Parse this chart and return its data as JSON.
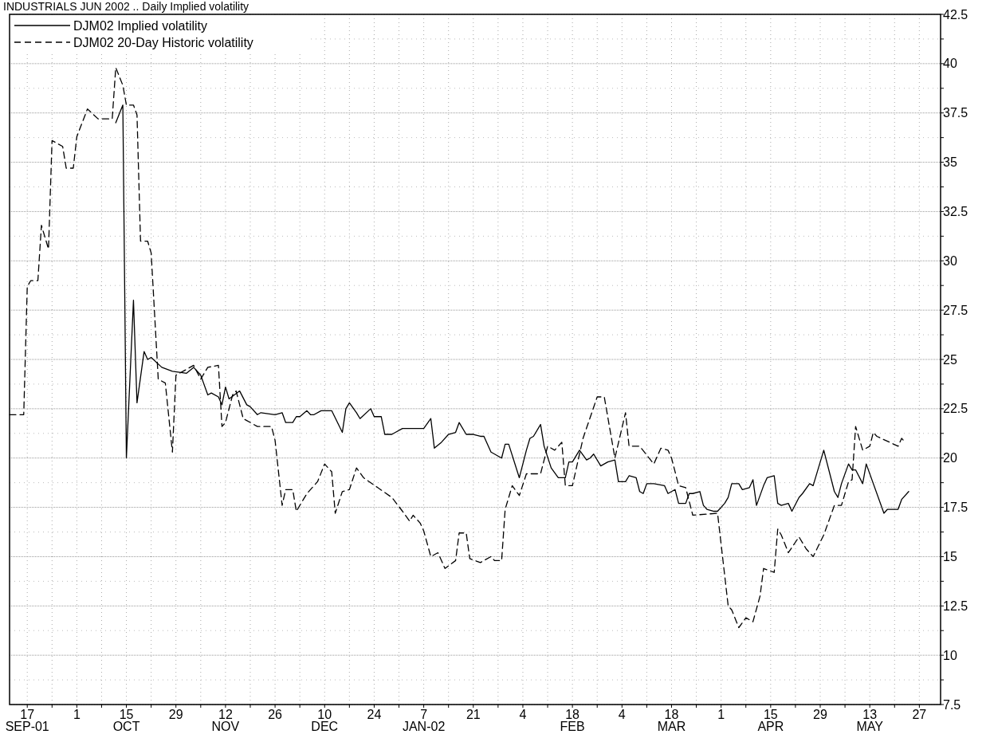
{
  "chart_data": {
    "type": "line",
    "title": "INDUSTRIALS JUN 2002 .. Daily Implied volatility",
    "xlim": [
      "2001-09-12",
      "2002-06-02"
    ],
    "ylim": [
      7.5,
      42.5
    ],
    "xticks": [
      {
        "value": "2001-09-17",
        "label": "17\nSEP-01"
      },
      {
        "value": "2001-09-24",
        "label": null
      },
      {
        "value": "2001-10-01",
        "label": "1"
      },
      {
        "value": "2001-10-08",
        "label": null
      },
      {
        "value": "2001-10-15",
        "label": "15\nOCT"
      },
      {
        "value": "2001-10-22",
        "label": null
      },
      {
        "value": "2001-10-29",
        "label": "29"
      },
      {
        "value": "2001-11-05",
        "label": null
      },
      {
        "value": "2001-11-12",
        "label": "12\nNOV"
      },
      {
        "value": "2001-11-19",
        "label": null
      },
      {
        "value": "2001-11-26",
        "label": "26"
      },
      {
        "value": "2001-12-03",
        "label": null
      },
      {
        "value": "2001-12-10",
        "label": "10\nDEC"
      },
      {
        "value": "2001-12-17",
        "label": null
      },
      {
        "value": "2001-12-24",
        "label": "24"
      },
      {
        "value": "2001-12-31",
        "label": null
      },
      {
        "value": "2002-01-07",
        "label": "7\nJAN-02"
      },
      {
        "value": "2002-01-14",
        "label": null
      },
      {
        "value": "2002-01-21",
        "label": "21"
      },
      {
        "value": "2002-01-28",
        "label": null
      },
      {
        "value": "2002-02-04",
        "label": "4"
      },
      {
        "value": "2002-02-11",
        "label": null
      },
      {
        "value": "2002-02-18",
        "label": "18\nFEB"
      },
      {
        "value": "2002-02-25",
        "label": null
      },
      {
        "value": "2002-03-04",
        "label": "4"
      },
      {
        "value": "2002-03-11",
        "label": null
      },
      {
        "value": "2002-03-18",
        "label": "18\nMAR"
      },
      {
        "value": "2002-03-25",
        "label": null
      },
      {
        "value": "2002-04-01",
        "label": "1"
      },
      {
        "value": "2002-04-08",
        "label": null
      },
      {
        "value": "2002-04-15",
        "label": "15\nAPR"
      },
      {
        "value": "2002-04-22",
        "label": null
      },
      {
        "value": "2002-04-29",
        "label": "29"
      },
      {
        "value": "2002-05-06",
        "label": null
      },
      {
        "value": "2002-05-13",
        "label": "13\nMAY"
      },
      {
        "value": "2002-05-20",
        "label": null
      },
      {
        "value": "2002-05-27",
        "label": "27"
      }
    ],
    "yticks": [
      7.5,
      {
        "value": 8.75,
        "label": null
      },
      10,
      {
        "value": 11.25,
        "label": null
      },
      12.5,
      {
        "value": 13.75,
        "label": null
      },
      15,
      {
        "value": 16.25,
        "label": null
      },
      17.5,
      {
        "value": 18.75,
        "label": null
      },
      20,
      {
        "value": 21.25,
        "label": null
      },
      22.5,
      {
        "value": 23.75,
        "label": null
      },
      25,
      {
        "value": 26.25,
        "label": null
      },
      27.5,
      {
        "value": 28.75,
        "label": null
      },
      30,
      {
        "value": 31.25,
        "label": null
      },
      32.5,
      {
        "value": 33.75,
        "label": null
      },
      35,
      {
        "value": 36.25,
        "label": null
      },
      37.5,
      {
        "value": 38.75,
        "label": null
      },
      40,
      {
        "value": 41.25,
        "label": null
      },
      42.5
    ],
    "grid": true,
    "legend": "top left",
    "marker": "none",
    "series": [
      {
        "name": "DJM02 Implied volatility",
        "color": "#000000",
        "line_style": "solid",
        "x": [
          "2001-10-12",
          "2001-10-14",
          "2001-10-15",
          "2001-10-17",
          "2001-10-18",
          "2001-10-20",
          "2001-10-21",
          "2001-10-22",
          "2001-10-25",
          "2001-10-28",
          "2001-11-01",
          "2001-11-03",
          "2001-11-05",
          "2001-11-07",
          "2001-11-08",
          "2001-11-10",
          "2001-11-11",
          "2001-11-12",
          "2001-11-13",
          "2001-11-16",
          "2001-11-18",
          "2001-11-19",
          "2001-11-21",
          "2001-11-22",
          "2001-11-26",
          "2001-11-28",
          "2001-11-29",
          "2001-12-01",
          "2001-12-02",
          "2001-12-03",
          "2001-12-05",
          "2001-12-06",
          "2001-12-07",
          "2001-12-09",
          "2001-12-12",
          "2001-12-15",
          "2001-12-16",
          "2001-12-17",
          "2001-12-19",
          "2001-12-20",
          "2001-12-23",
          "2001-12-24",
          "2001-12-26",
          "2001-12-27",
          "2001-12-29",
          "2001-12-30",
          "2002-01-01",
          "2002-01-07",
          "2002-01-09",
          "2002-01-10",
          "2002-01-12",
          "2002-01-14",
          "2002-01-16",
          "2002-01-17",
          "2002-01-19",
          "2002-01-21",
          "2002-01-23",
          "2002-01-24",
          "2002-01-26",
          "2002-01-27",
          "2002-01-29",
          "2002-01-30",
          "2002-01-31",
          "2002-02-03",
          "2002-02-05",
          "2002-02-06",
          "2002-02-07",
          "2002-02-09",
          "2002-02-10",
          "2002-02-12",
          "2002-02-14",
          "2002-02-16",
          "2002-02-17",
          "2002-02-18",
          "2002-02-20",
          "2002-02-22",
          "2002-02-23",
          "2002-02-24",
          "2002-02-26",
          "2002-02-28",
          "2002-03-02",
          "2002-03-03",
          "2002-03-05",
          "2002-03-06",
          "2002-03-08",
          "2002-03-09",
          "2002-03-10",
          "2002-03-11",
          "2002-03-13",
          "2002-03-16",
          "2002-03-17",
          "2002-03-19",
          "2002-03-20",
          "2002-03-22",
          "2002-03-23",
          "2002-03-24",
          "2002-03-26",
          "2002-03-27",
          "2002-03-28",
          "2002-03-30",
          "2002-03-31",
          "2002-04-02",
          "2002-04-03",
          "2002-04-04",
          "2002-04-06",
          "2002-04-07",
          "2002-04-09",
          "2002-04-10",
          "2002-04-11",
          "2002-04-13",
          "2002-04-14",
          "2002-04-16",
          "2002-04-17",
          "2002-04-18",
          "2002-04-20",
          "2002-04-21",
          "2002-04-23",
          "2002-04-24",
          "2002-04-26",
          "2002-04-27",
          "2002-04-30",
          "2002-05-03",
          "2002-05-04",
          "2002-05-05",
          "2002-05-07",
          "2002-05-08",
          "2002-05-09",
          "2002-05-11",
          "2002-05-12",
          "2002-05-17",
          "2002-05-18",
          "2002-05-21",
          "2002-05-22",
          "2002-05-24"
        ],
        "values": [
          37.0,
          37.9,
          20.0,
          28.0,
          22.8,
          25.4,
          25.0,
          25.1,
          24.6,
          24.4,
          24.3,
          24.6,
          24.2,
          23.2,
          23.3,
          23.1,
          22.7,
          23.6,
          23.0,
          23.4,
          22.7,
          22.6,
          22.2,
          22.3,
          22.2,
          22.3,
          21.8,
          21.8,
          22.1,
          22.1,
          22.4,
          22.2,
          22.2,
          22.4,
          22.4,
          21.3,
          22.5,
          22.8,
          22.3,
          22.0,
          22.5,
          22.1,
          22.1,
          21.2,
          21.2,
          21.3,
          21.5,
          21.5,
          22.0,
          20.5,
          20.8,
          21.2,
          21.3,
          21.8,
          21.2,
          21.2,
          21.1,
          21.1,
          20.3,
          20.2,
          20.0,
          20.7,
          20.7,
          19.0,
          20.4,
          21.0,
          21.1,
          21.7,
          20.6,
          19.5,
          19.0,
          19.0,
          19.8,
          19.8,
          20.4,
          19.9,
          20.0,
          20.2,
          19.6,
          19.8,
          19.9,
          18.8,
          18.8,
          19.1,
          19.0,
          18.3,
          18.2,
          18.7,
          18.7,
          18.6,
          18.2,
          18.4,
          17.7,
          17.7,
          18.2,
          18.2,
          18.3,
          17.6,
          17.4,
          17.3,
          17.3,
          17.7,
          18.0,
          18.7,
          18.7,
          18.4,
          18.5,
          18.9,
          17.6,
          18.6,
          19.0,
          19.1,
          17.7,
          17.6,
          17.7,
          17.3,
          18.0,
          18.2,
          18.7,
          18.6,
          20.4,
          18.3,
          18.0,
          18.7,
          19.7,
          19.4,
          19.4,
          18.7,
          19.7,
          17.2,
          17.4,
          17.4,
          17.9,
          18.3
        ]
      },
      {
        "name": "DJM02 20-Day Historic volatility",
        "color": "#000000",
        "line_style": "dashed",
        "x": [
          "2001-09-12",
          "2001-09-16",
          "2001-09-17",
          "2001-09-18",
          "2001-09-20",
          "2001-09-21",
          "2001-09-23",
          "2001-09-24",
          "2001-09-27",
          "2001-09-28",
          "2001-09-30",
          "2001-10-01",
          "2001-10-04",
          "2001-10-07",
          "2001-10-11",
          "2001-10-12",
          "2001-10-14",
          "2001-10-15",
          "2001-10-17",
          "2001-10-18",
          "2001-10-19",
          "2001-10-21",
          "2001-10-22",
          "2001-10-24",
          "2001-10-26",
          "2001-10-28",
          "2001-10-29",
          "2001-10-31",
          "2001-11-03",
          "2001-11-05",
          "2001-11-07",
          "2001-11-10",
          "2001-11-11",
          "2001-11-12",
          "2001-11-14",
          "2001-11-15",
          "2001-11-17",
          "2001-11-21",
          "2001-11-25",
          "2001-11-26",
          "2001-11-28",
          "2001-11-29",
          "2001-12-01",
          "2001-12-02",
          "2001-12-05",
          "2001-12-08",
          "2001-12-10",
          "2001-12-12",
          "2001-12-13",
          "2001-12-15",
          "2001-12-17",
          "2001-12-19",
          "2001-12-21",
          "2001-12-25",
          "2001-12-29",
          "2002-01-01",
          "2002-01-03",
          "2002-01-04",
          "2002-01-06",
          "2002-01-07",
          "2002-01-09",
          "2002-01-11",
          "2002-01-13",
          "2002-01-16",
          "2002-01-17",
          "2002-01-19",
          "2002-01-20",
          "2002-01-23",
          "2002-01-26",
          "2002-01-27",
          "2002-01-29",
          "2002-01-30",
          "2002-02-01",
          "2002-02-03",
          "2002-02-05",
          "2002-02-09",
          "2002-02-11",
          "2002-02-13",
          "2002-02-15",
          "2002-02-16",
          "2002-02-18",
          "2002-02-21",
          "2002-02-25",
          "2002-02-27",
          "2002-03-02",
          "2002-03-05",
          "2002-03-06",
          "2002-03-09",
          "2002-03-13",
          "2002-03-15",
          "2002-03-17",
          "2002-03-18",
          "2002-03-20",
          "2002-03-22",
          "2002-03-24",
          "2002-03-31",
          "2002-04-03",
          "2002-04-04",
          "2002-04-06",
          "2002-04-08",
          "2002-04-10",
          "2002-04-12",
          "2002-04-13",
          "2002-04-16",
          "2002-04-17",
          "2002-04-18",
          "2002-04-20",
          "2002-04-23",
          "2002-04-25",
          "2002-04-27",
          "2002-04-30",
          "2002-05-03",
          "2002-05-05",
          "2002-05-07",
          "2002-05-08",
          "2002-05-09",
          "2002-05-11",
          "2002-05-13",
          "2002-05-14",
          "2002-05-15",
          "2002-05-21",
          "2002-05-22",
          "2002-05-23"
        ],
        "values": [
          22.2,
          22.2,
          28.7,
          29.0,
          29.0,
          31.8,
          30.6,
          36.1,
          35.8,
          34.7,
          34.7,
          36.3,
          37.7,
          37.2,
          37.2,
          39.8,
          38.9,
          37.9,
          37.9,
          37.4,
          31.0,
          31.0,
          30.4,
          24.0,
          23.8,
          20.3,
          24.2,
          24.4,
          24.7,
          24.0,
          24.6,
          24.7,
          21.6,
          21.8,
          23.2,
          23.4,
          22.0,
          21.6,
          21.6,
          20.9,
          17.6,
          18.4,
          18.4,
          17.3,
          18.2,
          18.8,
          19.7,
          19.3,
          17.2,
          18.3,
          18.4,
          19.5,
          19.0,
          18.5,
          18.0,
          17.3,
          16.8,
          17.1,
          16.7,
          16.3,
          15.0,
          15.2,
          14.4,
          14.8,
          16.2,
          16.2,
          14.9,
          14.7,
          15.0,
          14.8,
          14.8,
          17.4,
          18.6,
          18.1,
          19.2,
          19.2,
          20.6,
          20.4,
          20.8,
          18.6,
          18.6,
          21.0,
          23.1,
          23.1,
          20.0,
          22.3,
          20.6,
          20.6,
          19.7,
          20.5,
          20.4,
          20.0,
          18.6,
          18.5,
          17.1,
          17.2,
          12.5,
          12.3,
          11.4,
          11.9,
          11.7,
          13.0,
          14.4,
          14.2,
          16.4,
          16.1,
          15.2,
          16.0,
          15.4,
          15.0,
          16.1,
          17.6,
          17.6,
          18.8,
          18.9,
          21.6,
          20.4,
          20.6,
          21.3,
          21.1,
          20.6,
          21.0,
          20.8
        ]
      }
    ]
  }
}
